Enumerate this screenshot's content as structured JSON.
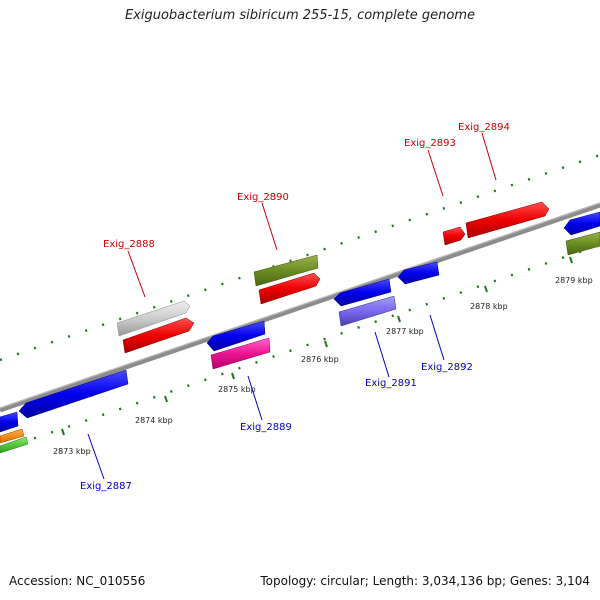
{
  "header": {
    "title": "Exiguobacterium sibiricum 255-15, complete genome"
  },
  "footer": {
    "accession": "Accession: NC_010556",
    "summary": "Topology: circular; Length: 3,034,136 bp; Genes: 3,104"
  },
  "colors": {
    "forward_label": "#cc0000",
    "reverse_label": "#0000cc",
    "backbone": "#8c8c8c",
    "tick": "#1a7a1a"
  },
  "ruler": {
    "labels": [
      "2873 kbp",
      "2874 kbp",
      "2875 kbp",
      "2876 kbp",
      "2877 kbp",
      "2878 kbp",
      "2879 kbp"
    ]
  },
  "genes_forward": [
    {
      "name": "Exig_2888",
      "color": "#cc0000"
    },
    {
      "name": "Exig_2890",
      "color": "#cc0000"
    },
    {
      "name": "Exig_2893",
      "color": "#cc0000"
    },
    {
      "name": "Exig_2894",
      "color": "#cc0000"
    }
  ],
  "genes_reverse": [
    {
      "name": "Exig_2887",
      "color": "#0000cc"
    },
    {
      "name": "Exig_2889",
      "color": "#0000cc"
    },
    {
      "name": "Exig_2891",
      "color": "#0000cc"
    },
    {
      "name": "Exig_2892",
      "color": "#0000cc"
    }
  ]
}
